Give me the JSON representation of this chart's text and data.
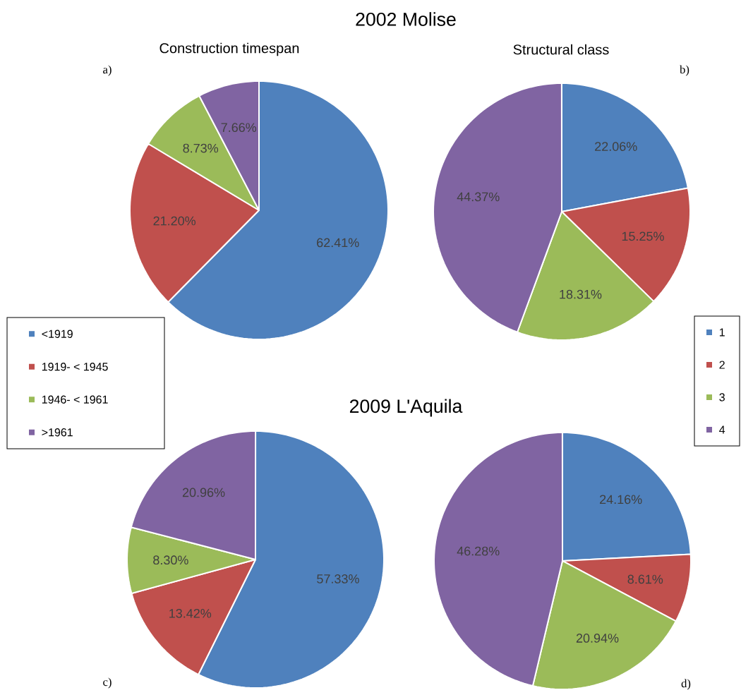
{
  "chart_data": [
    {
      "type": "pie",
      "title": "2002 Molise",
      "subtitle": "Construction timespan",
      "annotations": [
        "a)"
      ],
      "categories": [
        "<1919",
        "1919- < 1945",
        "1946- < 1961",
        ">1961"
      ],
      "values": [
        62.41,
        21.2,
        8.73,
        7.66
      ],
      "value_labels": [
        "62.41%",
        "21.20%",
        "8.73%",
        "7.66%"
      ],
      "colors": [
        "#4f81bd",
        "#c0504d",
        "#9bbb59",
        "#8064a2"
      ],
      "legend": "left"
    },
    {
      "type": "pie",
      "subtitle": "Structural class",
      "annotations": [
        "b)"
      ],
      "categories": [
        "1",
        "2",
        "3",
        "4"
      ],
      "values": [
        22.06,
        15.25,
        18.31,
        44.37
      ],
      "value_labels": [
        "22.06%",
        "15.25%",
        "18.31%",
        "44.37%"
      ],
      "colors": [
        "#4f81bd",
        "#c0504d",
        "#9bbb59",
        "#8064a2"
      ],
      "legend": "right"
    },
    {
      "type": "pie",
      "title": "2009 L'Aquila",
      "annotations": [
        "c)"
      ],
      "categories": [
        null,
        null,
        null,
        null
      ],
      "values": [
        57.33,
        13.42,
        8.3,
        20.96
      ],
      "value_labels": [
        "57.33%",
        "13.42%",
        "8.30%",
        "20.96%"
      ],
      "colors": [
        "#4f81bd",
        "#c0504d",
        "#9bbb59",
        "#8064a2"
      ]
    },
    {
      "type": "pie",
      "annotations": [
        "d)"
      ],
      "categories": [
        null,
        null,
        null,
        null
      ],
      "values": [
        24.16,
        8.61,
        20.94,
        46.28
      ],
      "value_labels": [
        "24.16%",
        "8.61%",
        "20.94%",
        "46.28%"
      ],
      "colors": [
        "#4f81bd",
        "#c0504d",
        "#9bbb59",
        "#8064a2"
      ]
    }
  ]
}
